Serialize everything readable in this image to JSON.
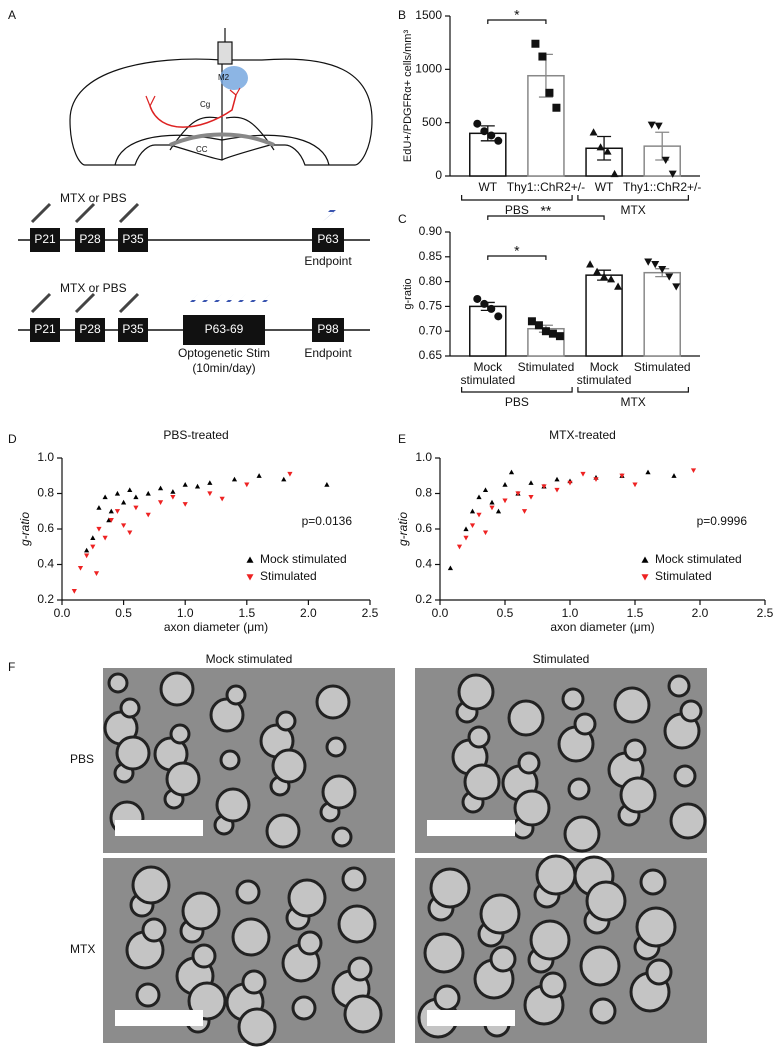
{
  "panels": [
    "A",
    "B",
    "C",
    "D",
    "E",
    "F"
  ],
  "diagram": {
    "regions": [
      "M2",
      "Cg",
      "CC"
    ],
    "timeline1": {
      "injection": "MTX or PBS",
      "days": [
        "P21",
        "P28",
        "P35",
        "P63"
      ],
      "end": "Endpoint"
    },
    "timeline2": {
      "injection": "MTX or PBS",
      "days": [
        "P21",
        "P28",
        "P35",
        "P63-69",
        "P98"
      ],
      "stim": "Optogenetic Stim",
      "stim_dose": "(10min/day)",
      "end": "Endpoint"
    }
  },
  "micrographs": {
    "columns": [
      "Mock stimulated",
      "Stimulated"
    ],
    "rows": [
      "PBS",
      "MTX"
    ]
  },
  "chart_data": [
    {
      "type": "bar",
      "y_label": "EdU+/PDGFRα+ cells/mm³",
      "categories": [
        "WT",
        "Thy1::ChR2+/-",
        "WT",
        "Thy1::ChR2+/-"
      ],
      "values": [
        400,
        940,
        260,
        280
      ],
      "errors": [
        70,
        200,
        110,
        130
      ],
      "points": [
        [
          490,
          420,
          380,
          330
        ],
        [
          1240,
          1120,
          780,
          640
        ],
        [
          410,
          270,
          230,
          20
        ],
        [
          480,
          470,
          150,
          20
        ]
      ],
      "markers": [
        "circle",
        "square",
        "triangle",
        "triangle-down"
      ],
      "colors": [
        "#111111",
        "#888888",
        "#111111",
        "#888888"
      ],
      "ylim": [
        0,
        1500
      ],
      "yticks": [
        0,
        500,
        1000,
        1500
      ],
      "groups": [
        {
          "label": "PBS",
          "from": 0,
          "to": 1
        },
        {
          "label": "MTX",
          "from": 2,
          "to": 3
        }
      ],
      "brackets": [
        {
          "label": "*",
          "from": 0,
          "to": 1
        }
      ]
    },
    {
      "type": "bar",
      "y_label": "g-ratio",
      "categories": [
        "Mock stimulated",
        "Stimulated",
        "Mock stimulated",
        "Stimulated"
      ],
      "values": [
        0.75,
        0.705,
        0.813,
        0.818
      ],
      "errors": [
        0.008,
        0.007,
        0.01,
        0.008
      ],
      "points": [
        [
          0.765,
          0.755,
          0.745,
          0.73
        ],
        [
          0.72,
          0.712,
          0.7,
          0.695,
          0.69
        ],
        [
          0.835,
          0.82,
          0.81,
          0.805,
          0.79
        ],
        [
          0.84,
          0.835,
          0.825,
          0.81,
          0.79
        ]
      ],
      "markers": [
        "circle",
        "square",
        "triangle",
        "triangle-down"
      ],
      "colors": [
        "#111111",
        "#888888",
        "#111111",
        "#888888"
      ],
      "ylim": [
        0.65,
        0.9
      ],
      "yticks": [
        0.65,
        {
          "value": 0.7,
          "label": "0.70"
        },
        0.75,
        {
          "value": 0.8,
          "label": "0.80"
        },
        0.85,
        {
          "value": 0.9,
          "label": "0.90"
        }
      ],
      "groups": [
        {
          "label": "PBS",
          "from": 0,
          "to": 1
        },
        {
          "label": "MTX",
          "from": 2,
          "to": 3
        }
      ],
      "brackets": [
        {
          "label": "*",
          "from": 0,
          "to": 1
        },
        {
          "label": "**",
          "from": 0,
          "to": 2
        }
      ]
    },
    {
      "type": "scatter",
      "title": "PBS-treated",
      "x_label": "axon diameter (μm)",
      "y_label": "g-ratio",
      "annotation": "p=0.0136",
      "xlim": [
        0,
        2.5
      ],
      "xticks": [
        {
          "value": 0,
          "label": "0.0"
        },
        0.5,
        {
          "value": 1,
          "label": "1.0"
        },
        1.5,
        {
          "value": 2,
          "label": "2.0"
        },
        2.5
      ],
      "ylim": [
        0.2,
        1
      ],
      "yticks": [
        0.2,
        0.4,
        0.6,
        0.8,
        {
          "value": 1,
          "label": "1.0"
        }
      ],
      "legend": "lower right",
      "series": [
        {
          "name": "Mock stimulated",
          "color": "#000000",
          "marker": "triangle",
          "x": [
            0.25,
            0.3,
            0.35,
            0.4,
            0.45,
            0.5,
            0.55,
            0.6,
            0.7,
            0.8,
            0.9,
            1.0,
            1.1,
            1.2,
            1.4,
            1.6,
            1.8,
            2.15,
            0.2,
            0.38
          ],
          "y": [
            0.55,
            0.72,
            0.78,
            0.7,
            0.8,
            0.75,
            0.82,
            0.78,
            0.8,
            0.83,
            0.81,
            0.85,
            0.84,
            0.86,
            0.88,
            0.9,
            0.88,
            0.85,
            0.48,
            0.65
          ]
        },
        {
          "name": "Stimulated",
          "color": "#ee2222",
          "marker": "triangle-down",
          "x": [
            0.1,
            0.15,
            0.2,
            0.25,
            0.3,
            0.35,
            0.4,
            0.45,
            0.5,
            0.6,
            0.7,
            0.8,
            0.9,
            1.0,
            1.2,
            1.3,
            1.5,
            1.85,
            0.28,
            0.55
          ],
          "y": [
            0.25,
            0.38,
            0.45,
            0.5,
            0.6,
            0.55,
            0.65,
            0.7,
            0.62,
            0.72,
            0.68,
            0.75,
            0.78,
            0.74,
            0.8,
            0.77,
            0.85,
            0.91,
            0.35,
            0.58
          ]
        }
      ]
    },
    {
      "type": "scatter",
      "title": "MTX-treated",
      "x_label": "axon diameter (μm)",
      "y_label": "g-ratio",
      "annotation": "p=0.9996",
      "xlim": [
        0,
        2.5
      ],
      "xticks": [
        {
          "value": 0,
          "label": "0.0"
        },
        0.5,
        {
          "value": 1,
          "label": "1.0"
        },
        1.5,
        {
          "value": 2,
          "label": "2.0"
        },
        2.5
      ],
      "ylim": [
        0.2,
        1
      ],
      "yticks": [
        0.2,
        0.4,
        0.6,
        0.8,
        {
          "value": 1,
          "label": "1.0"
        }
      ],
      "legend": "lower right",
      "series": [
        {
          "name": "Mock stimulated",
          "color": "#000000",
          "marker": "triangle",
          "x": [
            0.08,
            0.2,
            0.25,
            0.3,
            0.35,
            0.4,
            0.5,
            0.6,
            0.7,
            0.8,
            0.9,
            1.0,
            1.2,
            1.4,
            1.6,
            1.8,
            0.45,
            0.55
          ],
          "y": [
            0.38,
            0.6,
            0.7,
            0.78,
            0.82,
            0.75,
            0.85,
            0.8,
            0.86,
            0.84,
            0.88,
            0.87,
            0.89,
            0.9,
            0.92,
            0.9,
            0.7,
            0.92
          ]
        },
        {
          "name": "Stimulated",
          "color": "#ee2222",
          "marker": "triangle-down",
          "x": [
            0.15,
            0.2,
            0.25,
            0.3,
            0.4,
            0.5,
            0.6,
            0.7,
            0.8,
            0.9,
            1.0,
            1.2,
            1.4,
            1.5,
            1.95,
            0.35,
            0.65,
            1.1
          ],
          "y": [
            0.5,
            0.55,
            0.62,
            0.68,
            0.72,
            0.76,
            0.8,
            0.78,
            0.84,
            0.82,
            0.86,
            0.88,
            0.9,
            0.85,
            0.93,
            0.58,
            0.7,
            0.91
          ]
        }
      ]
    }
  ]
}
